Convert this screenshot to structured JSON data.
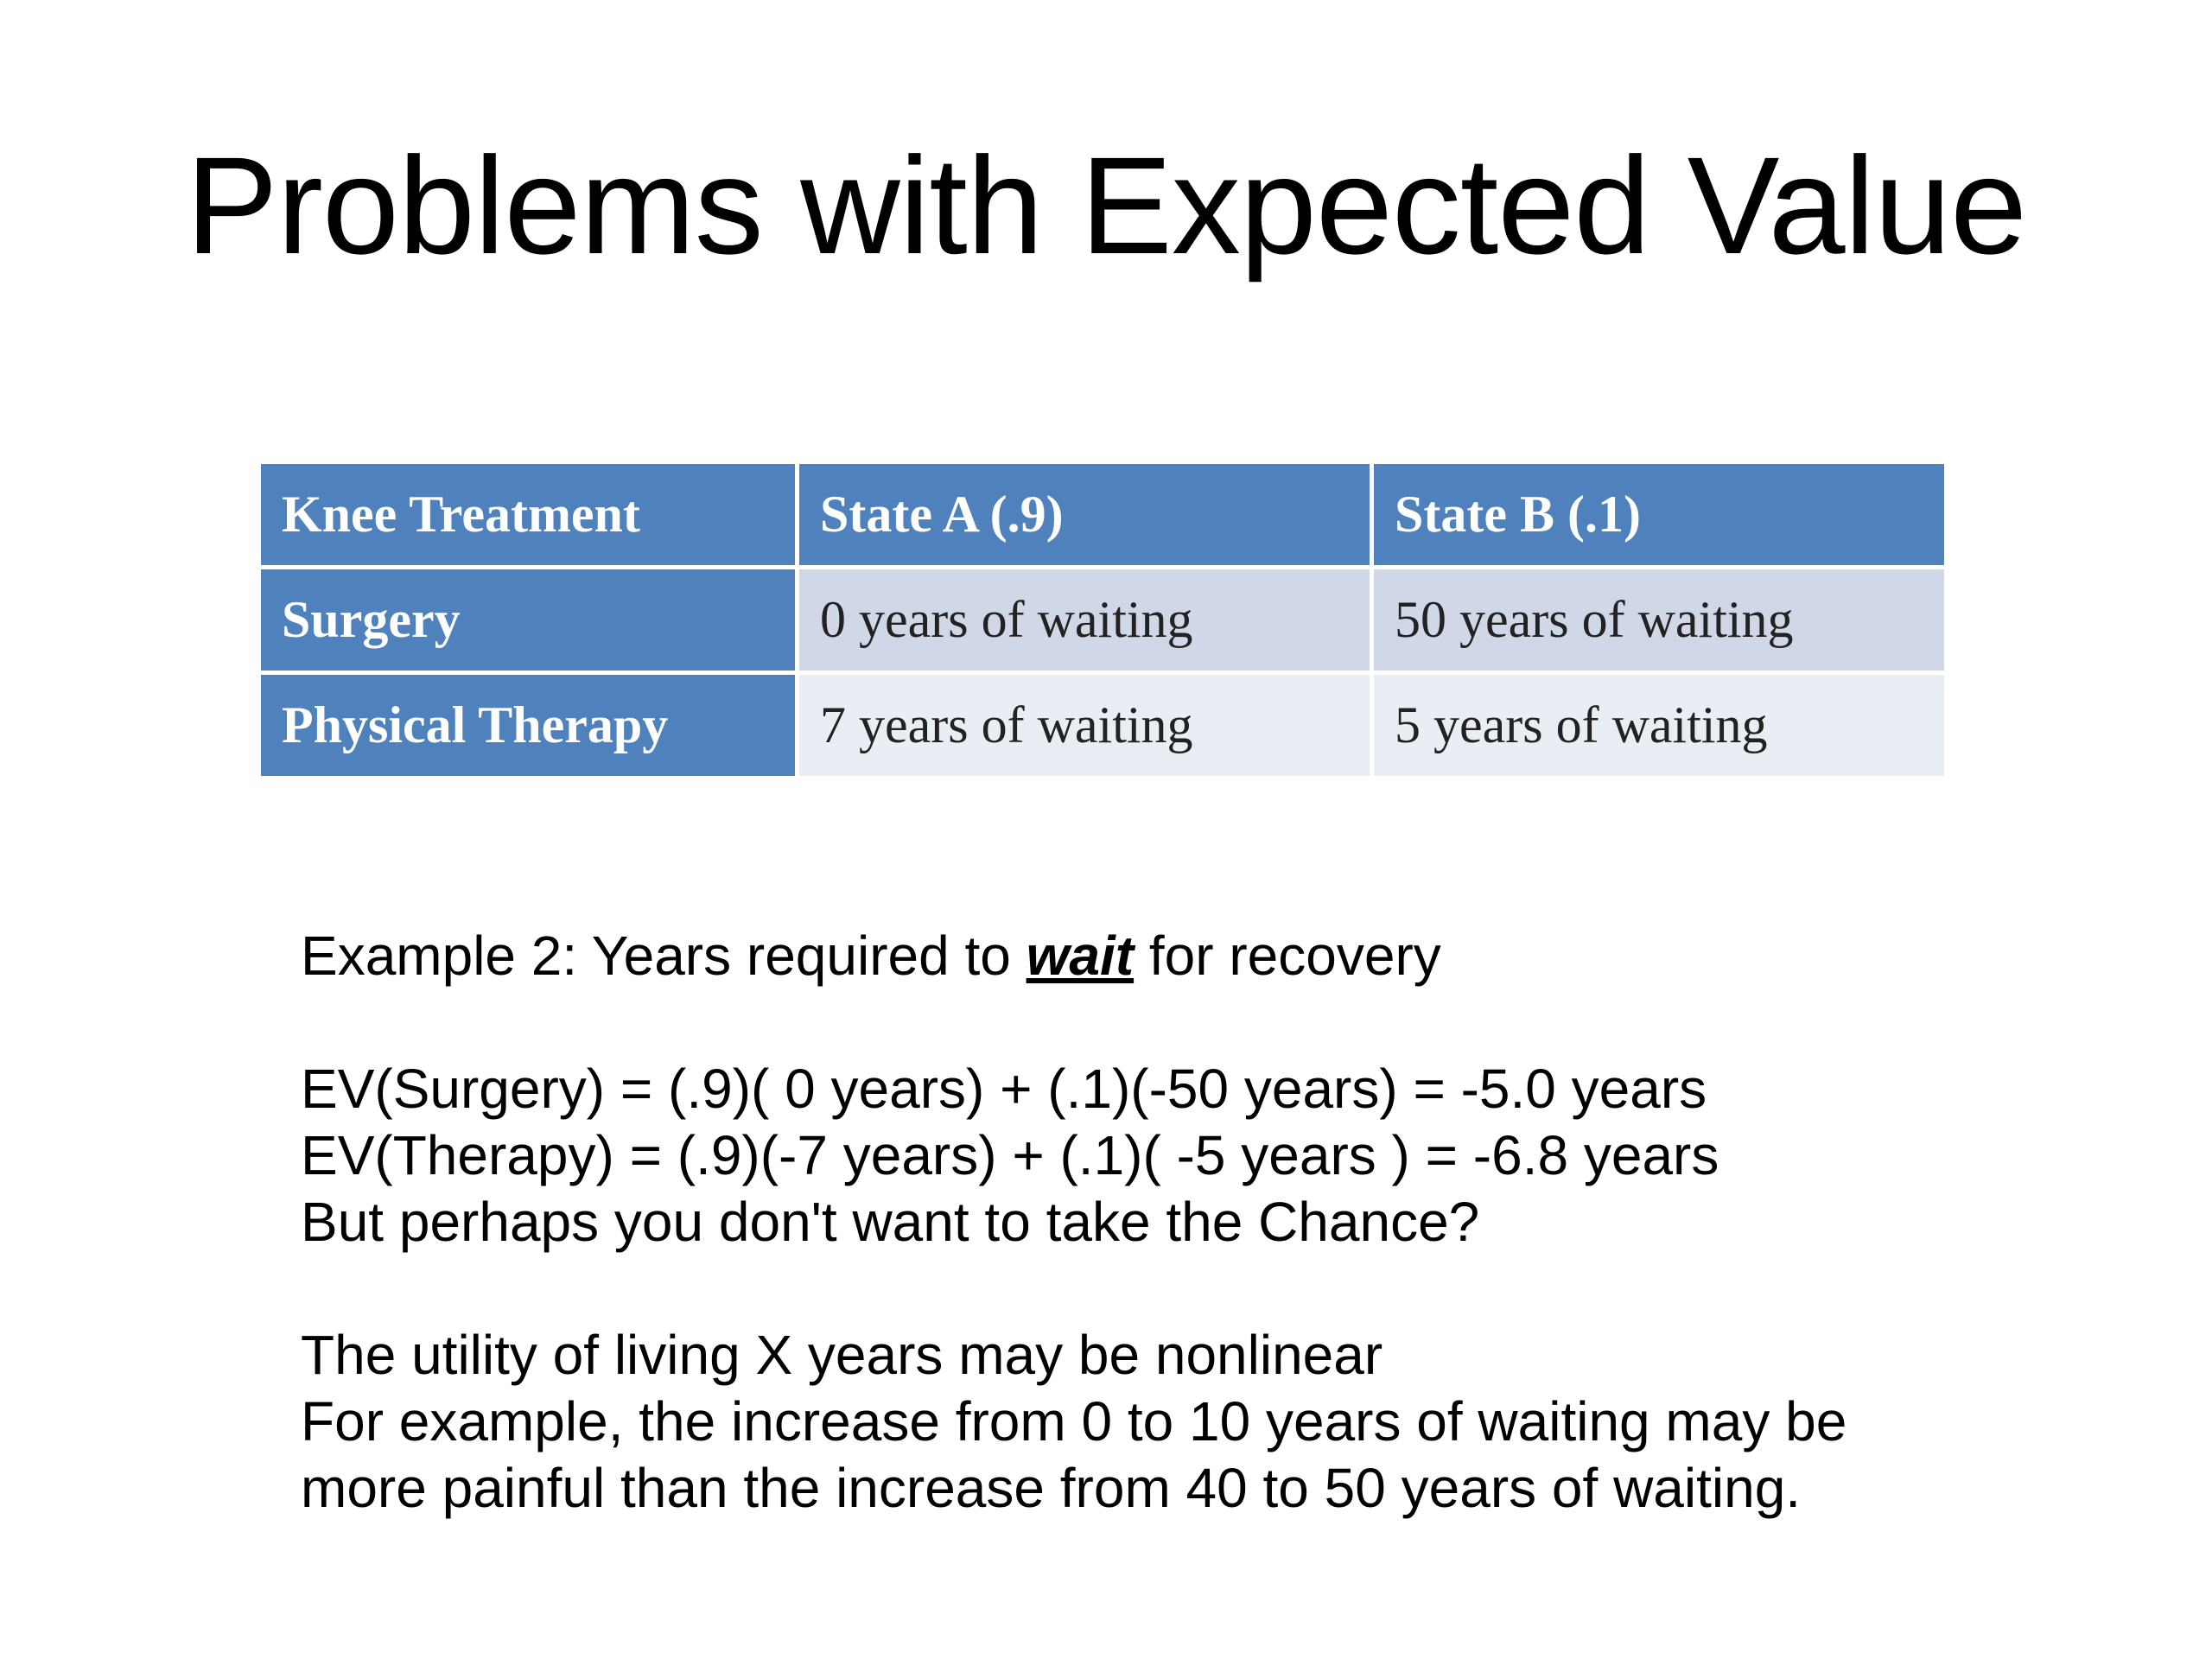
{
  "slide": {
    "title": "Problems with Expected Value"
  },
  "table": {
    "header": [
      "Knee Treatment",
      "State A (.9)",
      "State B (.1)"
    ],
    "rows": [
      [
        "Surgery",
        "0 years of waiting",
        "50 years of waiting"
      ],
      [
        "Physical Therapy",
        "7 years of waiting",
        "5 years of waiting"
      ]
    ]
  },
  "body": {
    "example_prefix": "Example 2: Years required to ",
    "example_emphasis": "wait",
    "example_suffix": " for recovery",
    "ev_surgery": "EV(Surgery) = (.9)( 0 years) + (.1)(-50 years) = -5.0 years",
    "ev_therapy": "EV(Therapy) = (.9)(-7 years) + (.1)( -5 years ) = -6.8 years",
    "question": "But perhaps you don't want to take the Chance?",
    "utility_1": "The utility of living X years may be nonlinear",
    "utility_2": "For example, the increase from 0 to 10 years of waiting may be",
    "utility_3": "more painful than the increase from 40 to 50 years of waiting."
  }
}
